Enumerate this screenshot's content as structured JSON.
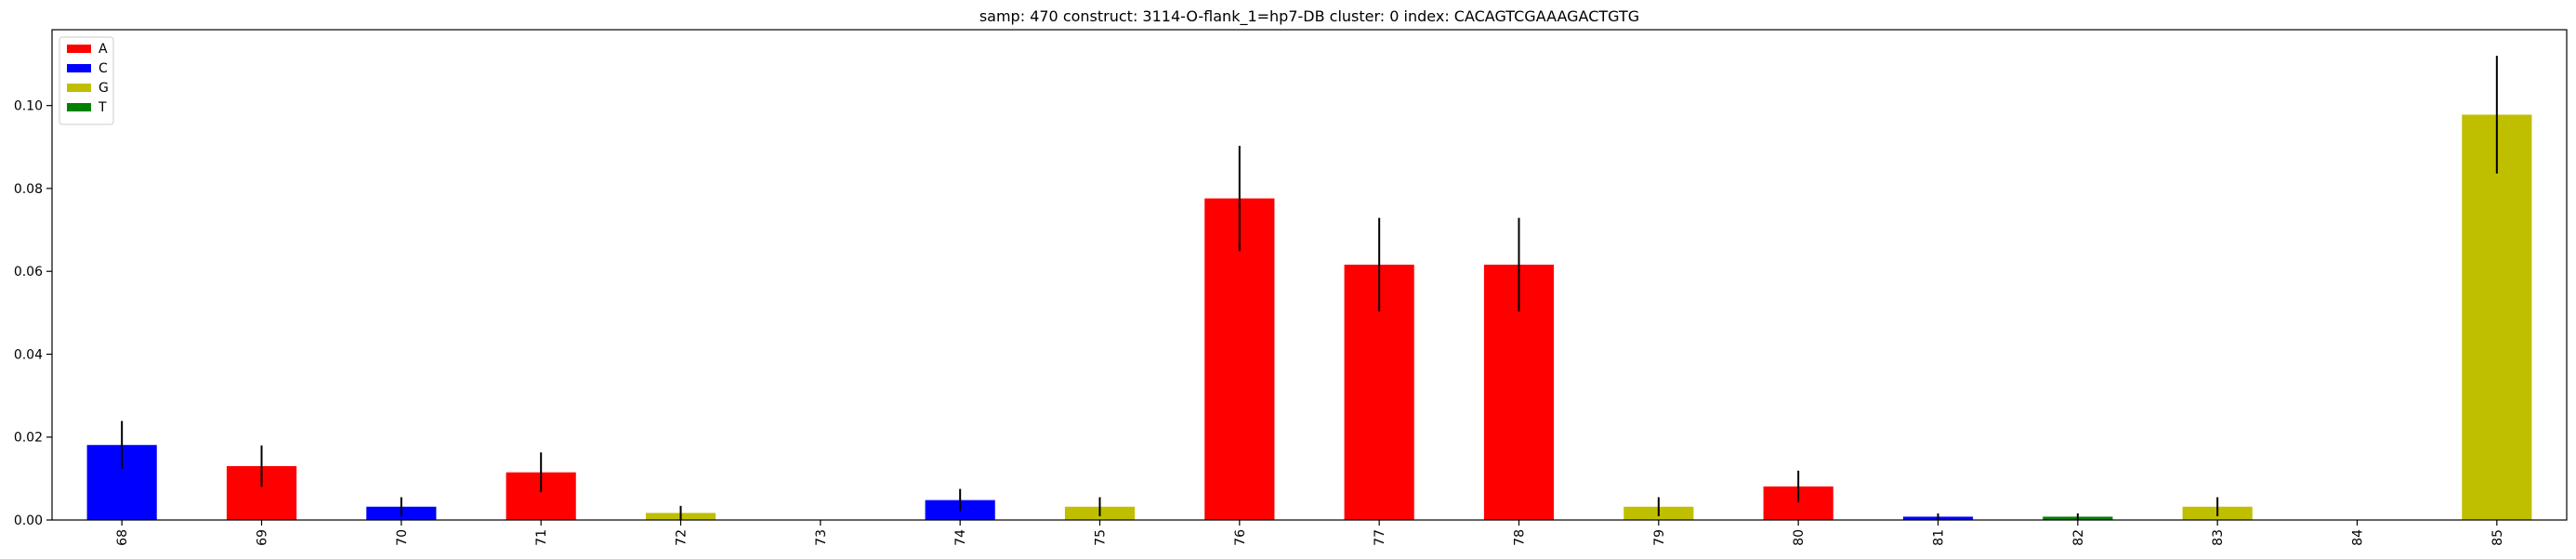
{
  "chart_data": {
    "type": "bar",
    "title": "samp: 470  construct: 3114-O-flank_1=hp7-DB  cluster: 0  index: CACAGTCGAAAGACTGTG",
    "xlabel": "",
    "ylabel": "",
    "categories": [
      "68",
      "69",
      "70",
      "71",
      "72",
      "73",
      "74",
      "75",
      "76",
      "77",
      "78",
      "79",
      "80",
      "81",
      "82",
      "83",
      "84",
      "85"
    ],
    "values": [
      0.0181,
      0.013,
      0.0032,
      0.0115,
      0.0017,
      0.0,
      0.0048,
      0.0032,
      0.0776,
      0.0616,
      0.0616,
      0.0032,
      0.0081,
      0.0008,
      0.0008,
      0.0032,
      0.0,
      0.0978
    ],
    "errors": [
      0.0058,
      0.005,
      0.0023,
      0.0048,
      0.0017,
      0.0,
      0.0027,
      0.0023,
      0.0127,
      0.0113,
      0.0113,
      0.0023,
      0.0038,
      0.0008,
      0.0008,
      0.0023,
      0.0,
      0.0142
    ],
    "bases": [
      "C",
      "A",
      "C",
      "A",
      "G",
      "A",
      "C",
      "G",
      "A",
      "A",
      "A",
      "G",
      "A",
      "C",
      "T",
      "G",
      "G",
      "G"
    ],
    "legend": {
      "placement": "top-left",
      "entries": [
        {
          "label": "A",
          "color": "#ff0000"
        },
        {
          "label": "C",
          "color": "#0000ff"
        },
        {
          "label": "G",
          "color": "#bfbf00"
        },
        {
          "label": "T",
          "color": "#008000"
        }
      ]
    },
    "ylim": [
      0,
      0.1183
    ],
    "yticks": [
      "0.00",
      "0.02",
      "0.04",
      "0.06",
      "0.08",
      "0.10"
    ],
    "ytick_values": [
      0,
      0.02,
      0.04,
      0.06,
      0.08,
      0.1
    ],
    "grid": false
  }
}
